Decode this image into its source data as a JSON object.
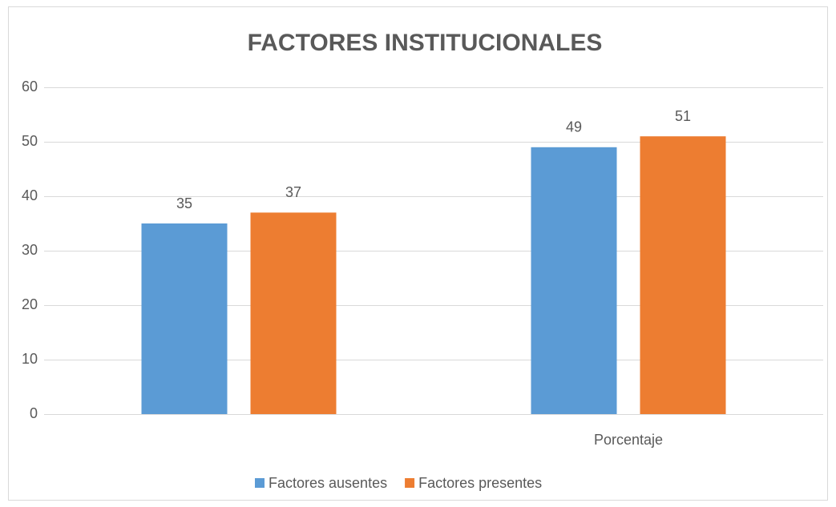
{
  "chart_data": {
    "type": "bar",
    "title": "FACTORES INSTITUCIONALES",
    "categories": [
      null,
      "Porcentaje"
    ],
    "series": [
      {
        "name": "Factores ausentes",
        "color": "#5b9bd5",
        "values": [
          35,
          49
        ]
      },
      {
        "name": "Factores presentes",
        "color": "#ed7d31",
        "values": [
          37,
          51
        ]
      }
    ],
    "ylim": [
      0,
      60
    ],
    "yticks": [
      0,
      10,
      20,
      30,
      40,
      50,
      60
    ],
    "grid": true,
    "legend": "bottom",
    "data_labels": true
  }
}
